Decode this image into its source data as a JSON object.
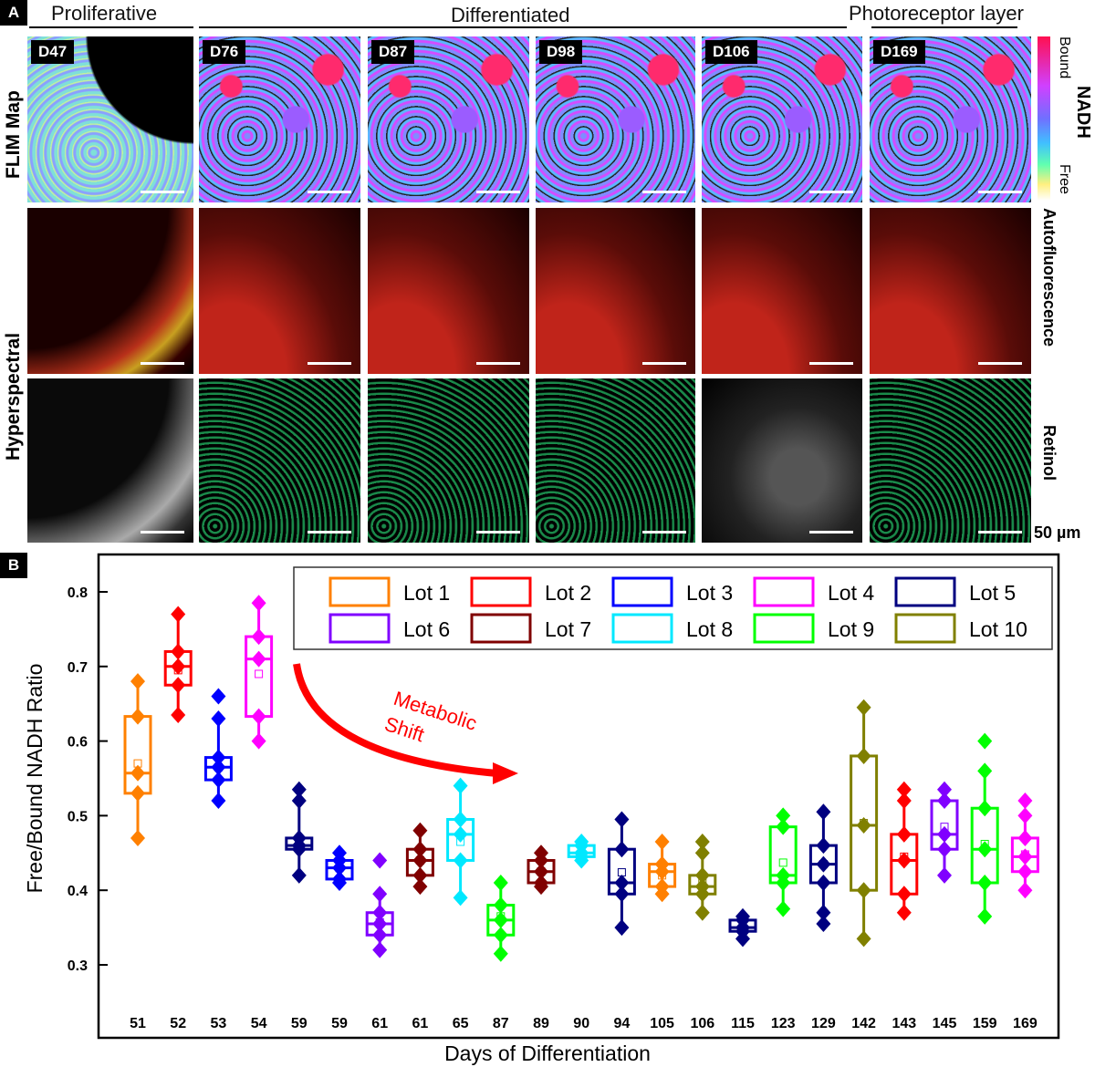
{
  "panel_a": {
    "tag": "A",
    "groups": [
      "Proliferative",
      "Differentiated",
      "Photoreceptor layer"
    ],
    "row_labels": {
      "flim": "FLIM Map",
      "hyperspectral": "Hyperspectral"
    },
    "right_labels": {
      "nadh": "NADH",
      "bound": "Bound",
      "free": "Free",
      "autofluorescence": "Autofluorescence",
      "retinol": "Retinol",
      "scale": "50 µm"
    },
    "days": [
      "D47",
      "D76",
      "D87",
      "D98",
      "D106",
      "D169"
    ]
  },
  "panel_b": {
    "tag": "B"
  },
  "chart_data": {
    "type": "box",
    "xlabel": "Days of Differentiation",
    "ylabel": "Free/Bound NADH Ratio",
    "ylim": [
      0.28,
      0.86
    ],
    "yticks": [
      "0.3",
      "0.4",
      "0.5",
      "0.6",
      "0.7",
      "0.8"
    ],
    "annotation": {
      "text1": "Metabolic",
      "text2": "Shift",
      "color": "#ff0000"
    },
    "legend": [
      {
        "name": "Lot 1",
        "color": "#ff8000"
      },
      {
        "name": "Lot 2",
        "color": "#ff0000"
      },
      {
        "name": "Lot 3",
        "color": "#0000ff"
      },
      {
        "name": "Lot 4",
        "color": "#ff00ff"
      },
      {
        "name": "Lot 5",
        "color": "#000080"
      },
      {
        "name": "Lot 6",
        "color": "#8000ff"
      },
      {
        "name": "Lot 7",
        "color": "#800000"
      },
      {
        "name": "Lot 8",
        "color": "#00e8ff"
      },
      {
        "name": "Lot 9",
        "color": "#00ff00"
      },
      {
        "name": "Lot 10",
        "color": "#808000"
      }
    ],
    "legend_placement": "top-right",
    "boxes": [
      {
        "day": "51",
        "lot": 1,
        "min": 0.47,
        "q1": 0.53,
        "median": 0.557,
        "q3": 0.633,
        "max": 0.68,
        "mean": 0.57,
        "outliers": []
      },
      {
        "day": "52",
        "lot": 2,
        "min": 0.635,
        "q1": 0.675,
        "median": 0.7,
        "q3": 0.72,
        "max": 0.77,
        "mean": 0.695,
        "outliers": []
      },
      {
        "day": "53",
        "lot": 3,
        "min": 0.52,
        "q1": 0.548,
        "median": 0.565,
        "q3": 0.578,
        "max": 0.63,
        "mean": 0.565,
        "outliers": [
          0.66
        ]
      },
      {
        "day": "54",
        "lot": 4,
        "min": 0.6,
        "q1": 0.633,
        "median": 0.71,
        "q3": 0.74,
        "max": 0.785,
        "mean": 0.69,
        "outliers": []
      },
      {
        "day": "59",
        "lot": 5,
        "min": 0.42,
        "q1": 0.455,
        "median": 0.46,
        "q3": 0.47,
        "max": 0.52,
        "mean": 0.468,
        "outliers": [
          0.535
        ]
      },
      {
        "day": "59",
        "lot": 3,
        "min": 0.41,
        "q1": 0.415,
        "median": 0.43,
        "q3": 0.44,
        "max": 0.45,
        "mean": 0.43,
        "outliers": []
      },
      {
        "day": "61",
        "lot": 6,
        "min": 0.32,
        "q1": 0.34,
        "median": 0.355,
        "q3": 0.37,
        "max": 0.395,
        "mean": 0.357,
        "outliers": [
          0.44
        ]
      },
      {
        "day": "61",
        "lot": 7,
        "min": 0.405,
        "q1": 0.42,
        "median": 0.44,
        "q3": 0.455,
        "max": 0.48,
        "mean": 0.44,
        "outliers": []
      },
      {
        "day": "65",
        "lot": 8,
        "min": 0.39,
        "q1": 0.44,
        "median": 0.475,
        "q3": 0.495,
        "max": 0.54,
        "mean": 0.465,
        "outliers": []
      },
      {
        "day": "87",
        "lot": 9,
        "min": 0.315,
        "q1": 0.34,
        "median": 0.36,
        "q3": 0.38,
        "max": 0.41,
        "mean": 0.365,
        "outliers": []
      },
      {
        "day": "89",
        "lot": 7,
        "min": 0.405,
        "q1": 0.41,
        "median": 0.425,
        "q3": 0.44,
        "max": 0.45,
        "mean": 0.425,
        "outliers": []
      },
      {
        "day": "90",
        "lot": 8,
        "min": 0.44,
        "q1": 0.445,
        "median": 0.45,
        "q3": 0.46,
        "max": 0.465,
        "mean": 0.45,
        "outliers": []
      },
      {
        "day": "94",
        "lot": 5,
        "min": 0.35,
        "q1": 0.395,
        "median": 0.41,
        "q3": 0.455,
        "max": 0.495,
        "mean": 0.424,
        "outliers": []
      },
      {
        "day": "105",
        "lot": 1,
        "min": 0.395,
        "q1": 0.405,
        "median": 0.425,
        "q3": 0.435,
        "max": 0.465,
        "mean": 0.42,
        "outliers": []
      },
      {
        "day": "106",
        "lot": 10,
        "min": 0.37,
        "q1": 0.395,
        "median": 0.405,
        "q3": 0.42,
        "max": 0.45,
        "mean": 0.41,
        "outliers": [
          0.465
        ]
      },
      {
        "day": "115",
        "lot": 5,
        "min": 0.335,
        "q1": 0.345,
        "median": 0.35,
        "q3": 0.36,
        "max": 0.365,
        "mean": 0.352,
        "outliers": []
      },
      {
        "day": "123",
        "lot": 9,
        "min": 0.375,
        "q1": 0.41,
        "median": 0.42,
        "q3": 0.485,
        "max": 0.5,
        "mean": 0.437,
        "outliers": []
      },
      {
        "day": "129",
        "lot": 5,
        "min": 0.37,
        "q1": 0.41,
        "median": 0.435,
        "q3": 0.46,
        "max": 0.505,
        "mean": 0.435,
        "outliers": [
          0.355
        ]
      },
      {
        "day": "142",
        "lot": 10,
        "min": 0.335,
        "q1": 0.4,
        "median": 0.487,
        "q3": 0.58,
        "max": 0.645,
        "mean": 0.49,
        "outliers": []
      },
      {
        "day": "143",
        "lot": 2,
        "min": 0.37,
        "q1": 0.395,
        "median": 0.44,
        "q3": 0.475,
        "max": 0.52,
        "mean": 0.445,
        "outliers": [
          0.535
        ]
      },
      {
        "day": "145",
        "lot": 6,
        "min": 0.42,
        "q1": 0.455,
        "median": 0.475,
        "q3": 0.52,
        "max": 0.535,
        "mean": 0.485,
        "outliers": []
      },
      {
        "day": "159",
        "lot": 9,
        "min": 0.365,
        "q1": 0.41,
        "median": 0.455,
        "q3": 0.51,
        "max": 0.56,
        "mean": 0.462,
        "outliers": [
          0.6
        ]
      },
      {
        "day": "169",
        "lot": 4,
        "min": 0.4,
        "q1": 0.425,
        "median": 0.445,
        "q3": 0.47,
        "max": 0.5,
        "mean": 0.448,
        "outliers": [
          0.52
        ]
      }
    ]
  }
}
